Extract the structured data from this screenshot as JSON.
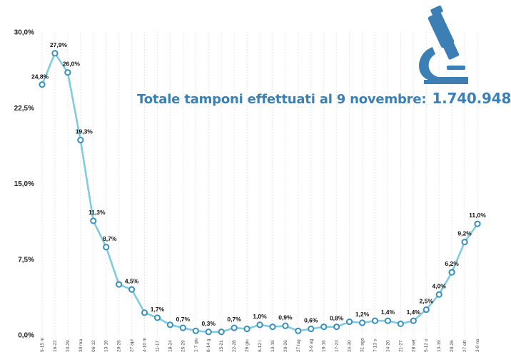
{
  "colors": {
    "line": "#7fcbe0",
    "marker_fill": "#ffffff",
    "marker_stroke": "#3b8fb8",
    "title": "#3b7fb5",
    "icon": "#3b7fb5"
  },
  "overlay": {
    "text": "Totale tamponi effettuati al 9 novembre:",
    "total": "1.740.948",
    "icon": "microscope-icon"
  },
  "chart_data": {
    "type": "line",
    "title": "",
    "xlabel": "",
    "ylabel": "",
    "ylim": [
      0,
      30
    ],
    "grid": "vertical dashed",
    "y_ticks": [
      "0,0%",
      "7,5%",
      "15,0%",
      "22,5%",
      "30,0%"
    ],
    "categories": [
      "9-15 m",
      "16-22",
      "23-29",
      "30 ma",
      "06-12",
      "13-19",
      "20-26",
      "27 apr",
      "4-10 m",
      "11-17",
      "18-24",
      "25-29",
      "1-7 giu",
      "8-14 g",
      "15-21",
      "22-28",
      "29 giu",
      "6-12 l",
      "13-19",
      "20-26",
      "27 lug",
      "3-9 ag",
      "10-16",
      "17-23",
      "24-30",
      "31 ago",
      "7-13 s",
      "14-20",
      "21-27",
      "28 set",
      "5-12 o",
      "13-19",
      "20-26",
      "27 ott",
      "3-9 no"
    ],
    "values": [
      24.8,
      27.9,
      26.0,
      19.3,
      11.3,
      8.7,
      5.0,
      4.5,
      2.2,
      1.7,
      1.0,
      0.7,
      0.4,
      0.3,
      0.3,
      0.7,
      0.6,
      1.0,
      0.8,
      0.9,
      0.4,
      0.6,
      0.8,
      0.8,
      1.3,
      1.2,
      1.4,
      1.4,
      1.1,
      1.4,
      2.5,
      4.0,
      6.2,
      9.2,
      11.0
    ],
    "data_labels": [
      "24,8%",
      "27,9%",
      "26,0%",
      "19,3%",
      "11,3%",
      "8,7%",
      "",
      "4,5%",
      "",
      "1,7%",
      "",
      "0,7%",
      "",
      "0,3%",
      "",
      "0,7%",
      "",
      "1,0%",
      "",
      "0,9%",
      "",
      "0,6%",
      "",
      "0,8%",
      "",
      "1,2%",
      "",
      "1,4%",
      "",
      "1,4%",
      "2,5%",
      "4,0%",
      "6,2%",
      "9,2%",
      "11,0%"
    ]
  }
}
